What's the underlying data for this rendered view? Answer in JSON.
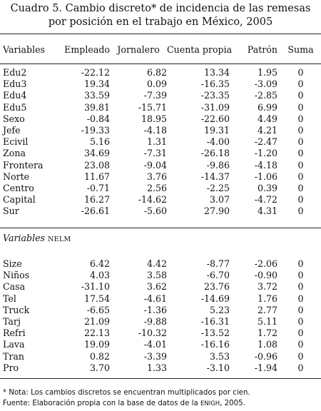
{
  "title": "Cuadro 5. Cambio discreto* de incidencia de las remesas por posición en el trabajo en México, 2005",
  "columns": [
    "Variables",
    "Empleado",
    "Jornalero",
    "Cuenta propia",
    "Patrón",
    "Suma"
  ],
  "section1": {
    "rows": [
      {
        "label": "Edu2",
        "empleado": "-22.12",
        "jornalero": "6.82",
        "cuenta_propia": "13.34",
        "patron": "1.95",
        "suma": "0"
      },
      {
        "label": "Edu3",
        "empleado": "19.34",
        "jornalero": "0.09",
        "cuenta_propia": "-16.35",
        "patron": "-3.09",
        "suma": "0"
      },
      {
        "label": "Edu4",
        "empleado": "33.59",
        "jornalero": "-7.39",
        "cuenta_propia": "-23.35",
        "patron": "-2.85",
        "suma": "0"
      },
      {
        "label": "Edu5",
        "empleado": "39.81",
        "jornalero": "-15.71",
        "cuenta_propia": "-31.09",
        "patron": "6.99",
        "suma": "0"
      },
      {
        "label": "Sexo",
        "empleado": "-0.84",
        "jornalero": "18.95",
        "cuenta_propia": "-22.60",
        "patron": "4.49",
        "suma": "0"
      },
      {
        "label": "Jefe",
        "empleado": "-19.33",
        "jornalero": "-4.18",
        "cuenta_propia": "19.31",
        "patron": "4.21",
        "suma": "0"
      },
      {
        "label": "Ecivil",
        "empleado": "5.16",
        "jornalero": "1.31",
        "cuenta_propia": "-4.00",
        "patron": "-2.47",
        "suma": "0"
      },
      {
        "label": "Zona",
        "empleado": "34.69",
        "jornalero": "-7.31",
        "cuenta_propia": "-26.18",
        "patron": "-1.20",
        "suma": "0"
      },
      {
        "label": "Frontera",
        "empleado": "23.08",
        "jornalero": "-9.04",
        "cuenta_propia": "-9.86",
        "patron": "-4.18",
        "suma": "0"
      },
      {
        "label": "Norte",
        "empleado": "11.67",
        "jornalero": "3.76",
        "cuenta_propia": "-14.37",
        "patron": "-1.06",
        "suma": "0"
      },
      {
        "label": "Centro",
        "empleado": "-0.71",
        "jornalero": "2.56",
        "cuenta_propia": "-2.25",
        "patron": "0.39",
        "suma": "0"
      },
      {
        "label": "Capital",
        "empleado": "16.27",
        "jornalero": "-14.62",
        "cuenta_propia": "3.07",
        "patron": "-4.72",
        "suma": "0"
      },
      {
        "label": "Sur",
        "empleado": "-26.61",
        "jornalero": "-5.60",
        "cuenta_propia": "27.90",
        "patron": "4.31",
        "suma": "0"
      }
    ]
  },
  "section2": {
    "label": "Variables",
    "label_sc": "NELM",
    "rows": [
      {
        "label": "Size",
        "empleado": "6.42",
        "jornalero": "4.42",
        "cuenta_propia": "-8.77",
        "patron": "-2.06",
        "suma": "0"
      },
      {
        "label": "Niños",
        "empleado": "4.03",
        "jornalero": "3.58",
        "cuenta_propia": "-6.70",
        "patron": "-0.90",
        "suma": "0"
      },
      {
        "label": "Casa",
        "empleado": "-31.10",
        "jornalero": "3.62",
        "cuenta_propia": "23.76",
        "patron": "3.72",
        "suma": "0"
      },
      {
        "label": "Tel",
        "empleado": "17.54",
        "jornalero": "-4.61",
        "cuenta_propia": "-14.69",
        "patron": "1.76",
        "suma": "0"
      },
      {
        "label": "Truck",
        "empleado": "-6.65",
        "jornalero": "-1.36",
        "cuenta_propia": "5.23",
        "patron": "2.77",
        "suma": "0"
      },
      {
        "label": "Tarj",
        "empleado": "21.09",
        "jornalero": "-9.88",
        "cuenta_propia": "-16.31",
        "patron": "5.11",
        "suma": "0"
      },
      {
        "label": "Refri",
        "empleado": "22.13",
        "jornalero": "-10.32",
        "cuenta_propia": "-13.52",
        "patron": "1.72",
        "suma": "0"
      },
      {
        "label": "Lava",
        "empleado": "19.09",
        "jornalero": "-4.01",
        "cuenta_propia": "-16.16",
        "patron": "1.08",
        "suma": "0"
      },
      {
        "label": "Tran",
        "empleado": "0.82",
        "jornalero": "-3.39",
        "cuenta_propia": "3.53",
        "patron": "-0.96",
        "suma": "0"
      },
      {
        "label": "Pro",
        "empleado": "3.70",
        "jornalero": "1.33",
        "cuenta_propia": "-3.10",
        "patron": "-1.94",
        "suma": "0"
      }
    ]
  },
  "notes": {
    "nota": "* Nota: Los cambios discretos se encuentran multiplicados por cien.",
    "fuente_pre": "Fuente: Elaboración propia con la base de datos de la",
    "fuente_sc": "ENIGH",
    "fuente_post": ", 2005."
  }
}
